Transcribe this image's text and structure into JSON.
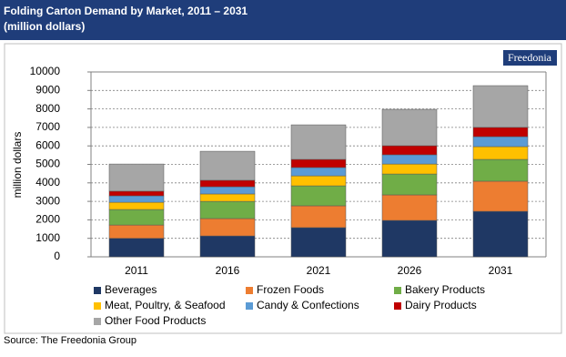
{
  "chart_data": {
    "type": "stacked-bar",
    "title": "Folding Carton Demand by Market, 2011 – 2031",
    "subtitle": "(million dollars)",
    "logo": "Freedonia",
    "source": "Source: The Freedonia Group",
    "y_label": "million dollars",
    "categories": [
      "2011",
      "2016",
      "2021",
      "2026",
      "2031"
    ],
    "series": [
      {
        "name": "Beverages",
        "color": "#1f3864",
        "values": [
          1000,
          1130,
          1580,
          1970,
          2460
        ]
      },
      {
        "name": "Frozen Foods",
        "color": "#ed7d31",
        "values": [
          720,
          940,
          1180,
          1380,
          1630
        ]
      },
      {
        "name": "Bakery Products",
        "color": "#70ad47",
        "values": [
          840,
          930,
          1080,
          1130,
          1180
        ]
      },
      {
        "name": "Meat, Poultry, & Seafood",
        "color": "#ffc000",
        "values": [
          390,
          400,
          540,
          540,
          690
        ]
      },
      {
        "name": "Candy & Confections",
        "color": "#5b9bd5",
        "values": [
          350,
          390,
          450,
          500,
          540
        ]
      },
      {
        "name": "Dairy Products",
        "color": "#c00000",
        "values": [
          250,
          350,
          440,
          490,
          500
        ]
      },
      {
        "name": "Other Food Products",
        "color": "#a6a6a6",
        "values": [
          1470,
          1570,
          1870,
          1970,
          2260
        ]
      }
    ],
    "ylim": [
      0,
      10000
    ],
    "yticks": [
      0,
      1000,
      2000,
      3000,
      4000,
      5000,
      6000,
      7000,
      8000,
      9000,
      10000
    ],
    "grid": true
  }
}
